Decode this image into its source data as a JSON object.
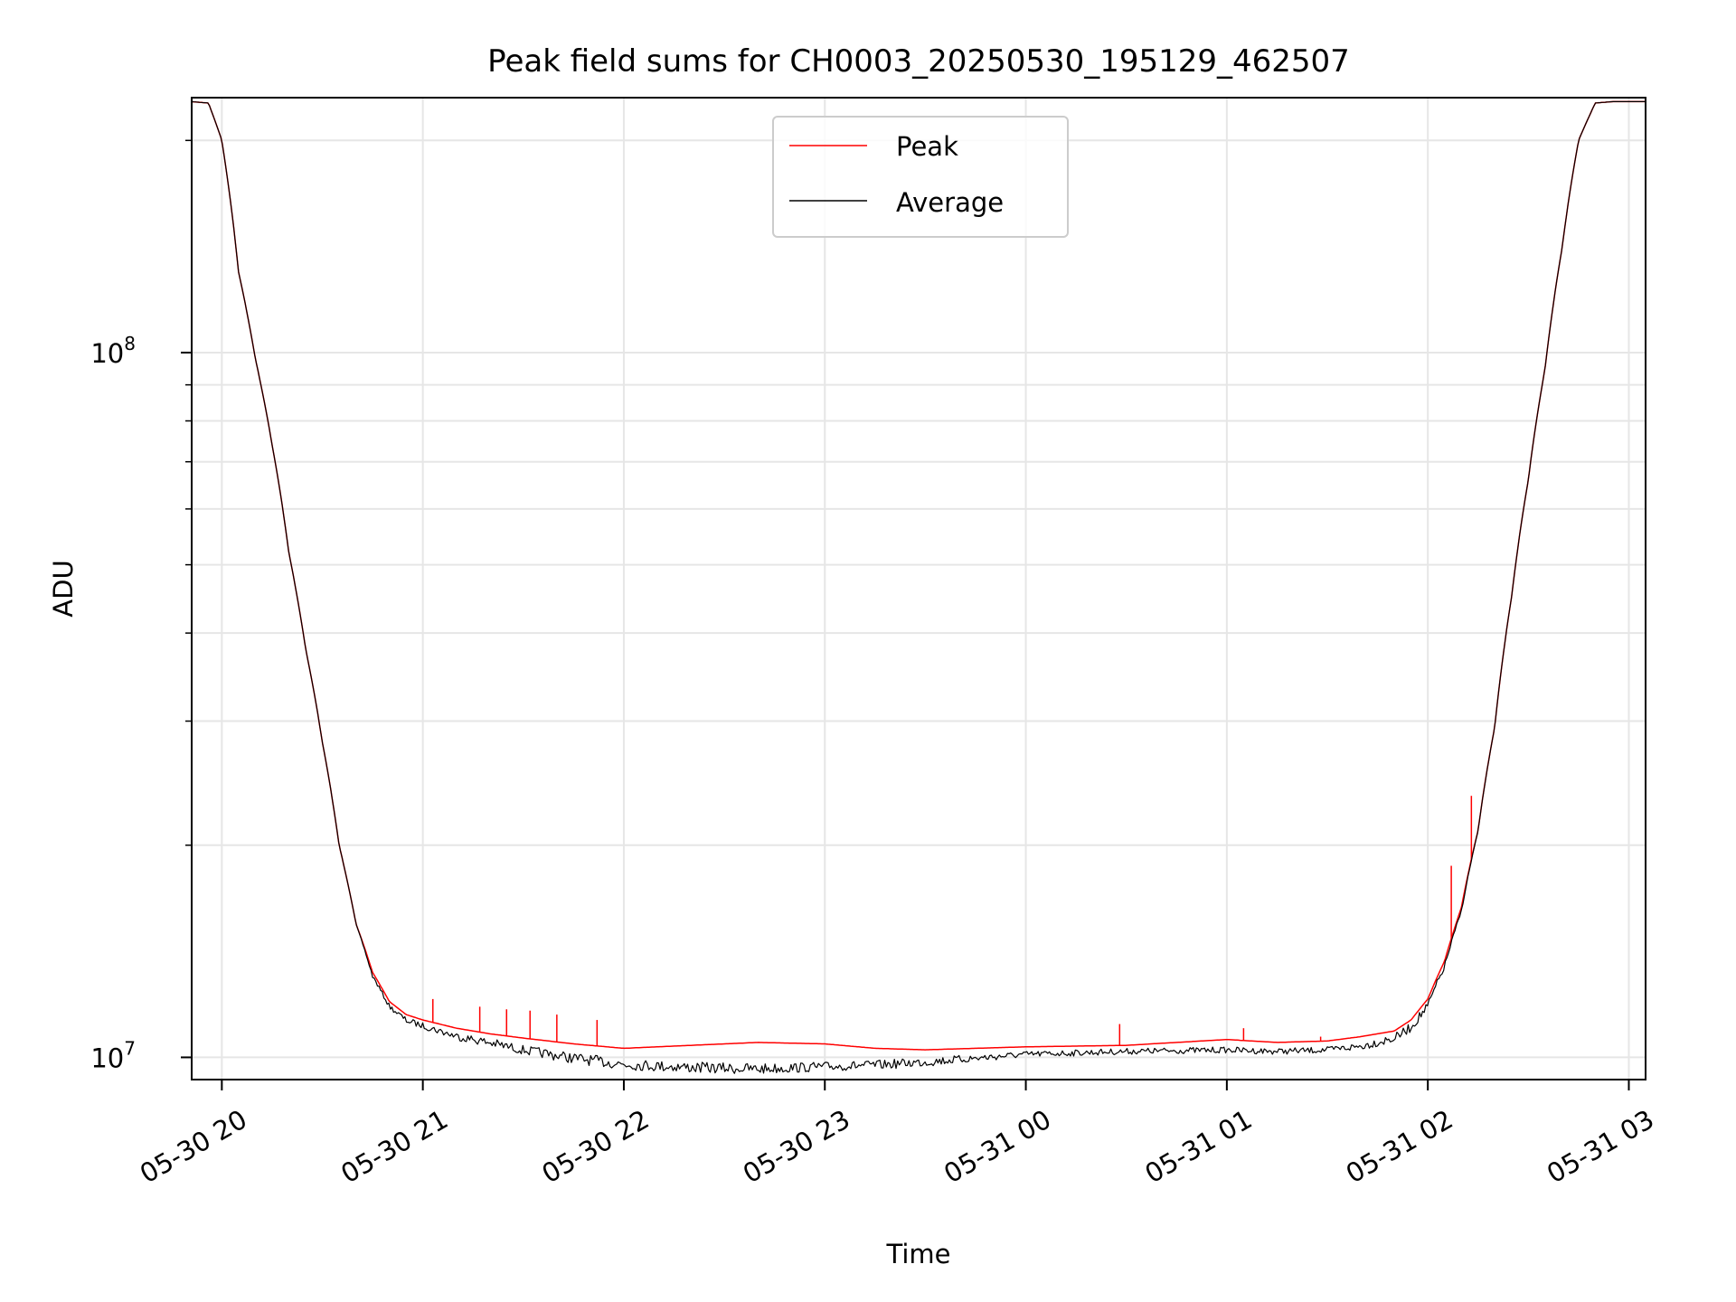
{
  "chart_data": {
    "type": "line",
    "title": "Peak field sums for CH0003_20250530_195129_462507",
    "xlabel": "Time",
    "ylabel": "ADU",
    "yscale": "log",
    "ylim": [
      9300000,
      230000000
    ],
    "xlim": [
      "2025-05-30 19:51",
      "2025-05-31 03:05"
    ],
    "grid": true,
    "legend_position": "top-center",
    "x_ticks": [
      "05-30 20",
      "05-30 21",
      "05-30 22",
      "05-30 23",
      "05-31 00",
      "05-31 01",
      "05-31 02",
      "05-31 03"
    ],
    "y_ticks": [
      {
        "value": 10000000,
        "base": "10",
        "exp": "7"
      },
      {
        "value": 100000000,
        "base": "10",
        "exp": "8"
      }
    ],
    "x": [
      "2025-05-30 19:51",
      "2025-05-30 19:56",
      "2025-05-30 20:00",
      "2025-05-30 20:05",
      "2025-05-30 20:10",
      "2025-05-30 20:15",
      "2025-05-30 20:20",
      "2025-05-30 20:25",
      "2025-05-30 20:30",
      "2025-05-30 20:35",
      "2025-05-30 20:40",
      "2025-05-30 20:45",
      "2025-05-30 20:50",
      "2025-05-30 20:55",
      "2025-05-30 21:00",
      "2025-05-30 21:10",
      "2025-05-30 21:20",
      "2025-05-30 21:30",
      "2025-05-30 21:45",
      "2025-05-30 22:00",
      "2025-05-30 22:20",
      "2025-05-30 22:40",
      "2025-05-30 23:00",
      "2025-05-30 23:15",
      "2025-05-30 23:30",
      "2025-05-30 23:45",
      "2025-05-31 00:00",
      "2025-05-31 00:30",
      "2025-05-31 01:00",
      "2025-05-31 01:15",
      "2025-05-31 01:30",
      "2025-05-31 01:40",
      "2025-05-31 01:50",
      "2025-05-31 01:55",
      "2025-05-31 02:00",
      "2025-05-31 02:05",
      "2025-05-31 02:10",
      "2025-05-31 02:15",
      "2025-05-31 02:20",
      "2025-05-31 02:25",
      "2025-05-31 02:30",
      "2025-05-31 02:35",
      "2025-05-31 02:40",
      "2025-05-31 02:45",
      "2025-05-31 02:50",
      "2025-05-31 02:55",
      "2025-05-31 03:00",
      "2025-05-31 03:05"
    ],
    "series": [
      {
        "name": "Peak",
        "color": "#ff0000",
        "values": [
          227000000,
          226000000,
          200000000,
          130000000,
          98000000,
          74000000,
          52000000,
          38000000,
          28000000,
          20000000,
          15500000,
          13200000,
          12000000,
          11500000,
          11300000,
          11000000,
          10800000,
          10650000,
          10450000,
          10300000,
          10400000,
          10500000,
          10450000,
          10300000,
          10250000,
          10300000,
          10350000,
          10400000,
          10600000,
          10500000,
          10550000,
          10700000,
          10900000,
          11300000,
          12100000,
          13700000,
          16300000,
          21000000,
          29500000,
          45000000,
          66000000,
          95000000,
          140000000,
          200000000,
          226000000,
          227000000,
          227000000,
          227000000
        ],
        "spikes": [
          {
            "x": "2025-05-30 21:03",
            "value": 12100000
          },
          {
            "x": "2025-05-30 21:17",
            "value": 11800000
          },
          {
            "x": "2025-05-30 21:25",
            "value": 11700000
          },
          {
            "x": "2025-05-30 21:32",
            "value": 11650000
          },
          {
            "x": "2025-05-30 21:40",
            "value": 11500000
          },
          {
            "x": "2025-05-30 21:52",
            "value": 11300000
          },
          {
            "x": "2025-05-31 00:28",
            "value": 11150000
          },
          {
            "x": "2025-05-31 01:05",
            "value": 11000000
          },
          {
            "x": "2025-05-31 01:28",
            "value": 10700000
          },
          {
            "x": "2025-05-31 02:07",
            "value": 18700000
          },
          {
            "x": "2025-05-31 02:13",
            "value": 23500000
          }
        ]
      },
      {
        "name": "Average",
        "color": "#000000",
        "values": [
          227000000,
          226000000,
          200000000,
          130000000,
          98000000,
          74000000,
          52000000,
          38000000,
          28000000,
          20000000,
          15500000,
          13100000,
          11900000,
          11400000,
          11200000,
          10850000,
          10650000,
          10400000,
          10150000,
          9950000,
          9850000,
          9800000,
          9850000,
          9900000,
          10000000,
          10100000,
          10200000,
          10300000,
          10350000,
          10300000,
          10350000,
          10500000,
          10800000,
          11200000,
          12000000,
          13600000,
          16200000,
          21000000,
          29500000,
          45000000,
          66000000,
          95000000,
          140000000,
          200000000,
          226000000,
          227000000,
          227000000,
          227000000
        ],
        "noise_fraction": [
          0,
          0,
          0,
          0,
          0,
          0,
          0,
          0,
          0,
          0,
          0,
          0.01,
          0.015,
          0.02,
          0.02,
          0.025,
          0.03,
          0.03,
          0.035,
          0.035,
          0.035,
          0.035,
          0.03,
          0.03,
          0.03,
          0.025,
          0.02,
          0.02,
          0.02,
          0.02,
          0.02,
          0.025,
          0.03,
          0.03,
          0.03,
          0.02,
          0.01,
          0.005,
          0,
          0,
          0,
          0,
          0,
          0,
          0,
          0,
          0,
          0
        ]
      }
    ]
  }
}
